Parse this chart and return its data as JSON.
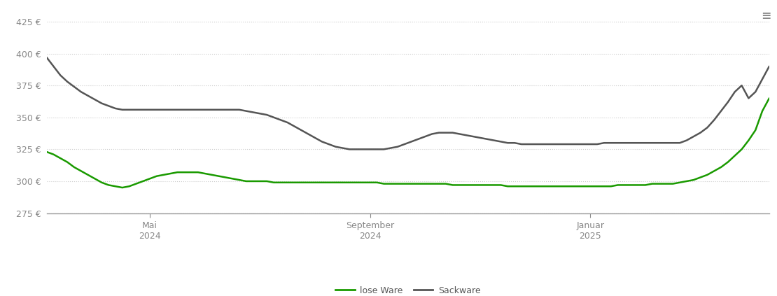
{
  "background_color": "#ffffff",
  "ylim": [
    275,
    435
  ],
  "yticks": [
    275,
    300,
    325,
    350,
    375,
    400,
    425
  ],
  "grid_color": "#cccccc",
  "grid_linestyle": "dotted",
  "legend_labels": [
    "lose Ware",
    "Sackware"
  ],
  "legend_colors": [
    "#1a9a00",
    "#555555"
  ],
  "lose_ware": {
    "color": "#1a9a00",
    "linewidth": 1.8,
    "x": [
      0,
      1,
      2,
      3,
      4,
      5,
      6,
      7,
      8,
      9,
      10,
      11,
      12,
      13,
      14,
      15,
      16,
      17,
      18,
      19,
      20,
      21,
      22,
      23,
      24,
      25,
      26,
      27,
      28,
      29,
      30,
      31,
      32,
      33,
      34,
      35,
      36,
      37,
      38,
      39,
      40,
      41,
      42,
      43,
      44,
      45,
      46,
      47,
      48,
      49,
      50,
      51,
      52,
      53,
      54,
      55,
      56,
      57,
      58,
      59,
      60,
      61,
      62,
      63,
      64,
      65,
      66,
      67,
      68,
      69,
      70,
      71,
      72,
      73,
      74,
      75,
      76,
      77,
      78,
      79,
      80,
      81,
      82,
      83,
      84,
      85,
      86,
      87,
      88,
      89,
      90,
      91,
      92,
      93,
      94,
      95,
      96,
      97,
      98,
      99,
      100,
      101,
      102,
      103,
      104,
      105
    ],
    "y": [
      323,
      321,
      318,
      315,
      311,
      308,
      305,
      302,
      299,
      297,
      296,
      295,
      296,
      298,
      300,
      302,
      304,
      305,
      306,
      307,
      307,
      307,
      307,
      306,
      305,
      304,
      303,
      302,
      301,
      300,
      300,
      300,
      300,
      299,
      299,
      299,
      299,
      299,
      299,
      299,
      299,
      299,
      299,
      299,
      299,
      299,
      299,
      299,
      299,
      298,
      298,
      298,
      298,
      298,
      298,
      298,
      298,
      298,
      298,
      297,
      297,
      297,
      297,
      297,
      297,
      297,
      297,
      296,
      296,
      296,
      296,
      296,
      296,
      296,
      296,
      296,
      296,
      296,
      296,
      296,
      296,
      296,
      296,
      297,
      297,
      297,
      297,
      297,
      298,
      298,
      298,
      298,
      299,
      300,
      301,
      303,
      305,
      308,
      311,
      315,
      320,
      325,
      332,
      340,
      355,
      365
    ]
  },
  "sackware": {
    "color": "#555555",
    "linewidth": 1.8,
    "x": [
      0,
      1,
      2,
      3,
      4,
      5,
      6,
      7,
      8,
      9,
      10,
      11,
      12,
      13,
      14,
      15,
      16,
      17,
      18,
      19,
      20,
      21,
      22,
      23,
      24,
      25,
      26,
      27,
      28,
      29,
      30,
      31,
      32,
      33,
      34,
      35,
      36,
      37,
      38,
      39,
      40,
      41,
      42,
      43,
      44,
      45,
      46,
      47,
      48,
      49,
      50,
      51,
      52,
      53,
      54,
      55,
      56,
      57,
      58,
      59,
      60,
      61,
      62,
      63,
      64,
      65,
      66,
      67,
      68,
      69,
      70,
      71,
      72,
      73,
      74,
      75,
      76,
      77,
      78,
      79,
      80,
      81,
      82,
      83,
      84,
      85,
      86,
      87,
      88,
      89,
      90,
      91,
      92,
      93,
      94,
      95,
      96,
      97,
      98,
      99,
      100,
      101,
      102,
      103,
      104,
      105
    ],
    "y": [
      397,
      390,
      383,
      378,
      374,
      370,
      367,
      364,
      361,
      359,
      357,
      356,
      356,
      356,
      356,
      356,
      356,
      356,
      356,
      356,
      356,
      356,
      356,
      356,
      356,
      356,
      356,
      356,
      356,
      355,
      354,
      353,
      352,
      350,
      348,
      346,
      343,
      340,
      337,
      334,
      331,
      329,
      327,
      326,
      325,
      325,
      325,
      325,
      325,
      325,
      326,
      327,
      329,
      331,
      333,
      335,
      337,
      338,
      338,
      338,
      337,
      336,
      335,
      334,
      333,
      332,
      331,
      330,
      330,
      329,
      329,
      329,
      329,
      329,
      329,
      329,
      329,
      329,
      329,
      329,
      329,
      330,
      330,
      330,
      330,
      330,
      330,
      330,
      330,
      330,
      330,
      330,
      330,
      332,
      335,
      338,
      342,
      348,
      355,
      362,
      370,
      375,
      365,
      370,
      380,
      390
    ]
  },
  "x_tick_positions": [
    15,
    47,
    79
  ],
  "x_tick_labels": [
    "Mai\n2024",
    "September\n2024",
    "Januar\n2025"
  ],
  "xlim": [
    0,
    105
  ]
}
